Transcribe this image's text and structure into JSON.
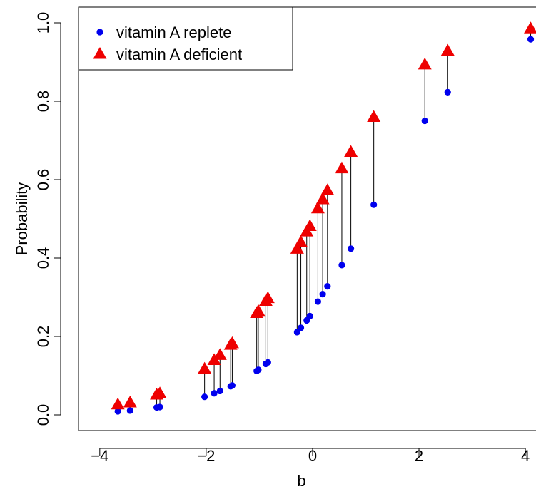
{
  "chart_data": {
    "type": "scatter",
    "xlabel": "b",
    "ylabel": "Probability",
    "xlim": [
      -4.4,
      4.2
    ],
    "ylim": [
      -0.04,
      1.04
    ],
    "xticks": [
      -4,
      -2,
      0,
      2,
      4
    ],
    "xtick_labels": [
      "−4",
      "−2",
      "0",
      "2",
      "4"
    ],
    "yticks": [
      0.0,
      0.2,
      0.4,
      0.6,
      0.8,
      1.0
    ],
    "ytick_labels": [
      "0.0",
      "0.2",
      "0.4",
      "0.6",
      "0.8",
      "1.0"
    ],
    "grid": false,
    "legend_position": "top-left",
    "series": [
      {
        "name": "vitamin A replete",
        "marker": "circle",
        "color": "#0000ee",
        "key": "replete"
      },
      {
        "name": "vitamin A deficient",
        "marker": "triangle",
        "color": "#ee0000",
        "key": "deficient"
      }
    ],
    "points": [
      {
        "b": -3.66,
        "replete": 0.009,
        "deficient": 0.026
      },
      {
        "b": -3.43,
        "replete": 0.011,
        "deficient": 0.031
      },
      {
        "b": -2.93,
        "replete": 0.019,
        "deficient": 0.051
      },
      {
        "b": -2.87,
        "replete": 0.02,
        "deficient": 0.054
      },
      {
        "b": -2.03,
        "replete": 0.046,
        "deficient": 0.117
      },
      {
        "b": -1.85,
        "replete": 0.055,
        "deficient": 0.139
      },
      {
        "b": -1.74,
        "replete": 0.061,
        "deficient": 0.152
      },
      {
        "b": -1.54,
        "replete": 0.073,
        "deficient": 0.178
      },
      {
        "b": -1.51,
        "replete": 0.075,
        "deficient": 0.182
      },
      {
        "b": -1.05,
        "replete": 0.112,
        "deficient": 0.259
      },
      {
        "b": -1.02,
        "replete": 0.115,
        "deficient": 0.264
      },
      {
        "b": -0.88,
        "replete": 0.13,
        "deficient": 0.29
      },
      {
        "b": -0.84,
        "replete": 0.134,
        "deficient": 0.297
      },
      {
        "b": -0.29,
        "replete": 0.211,
        "deficient": 0.423
      },
      {
        "b": -0.22,
        "replete": 0.222,
        "deficient": 0.44
      },
      {
        "b": -0.11,
        "replete": 0.241,
        "deficient": 0.467
      },
      {
        "b": -0.05,
        "replete": 0.252,
        "deficient": 0.481
      },
      {
        "b": 0.1,
        "replete": 0.289,
        "deficient": 0.526
      },
      {
        "b": 0.19,
        "replete": 0.308,
        "deficient": 0.549
      },
      {
        "b": 0.28,
        "replete": 0.328,
        "deficient": 0.572
      },
      {
        "b": 0.55,
        "replete": 0.382,
        "deficient": 0.628
      },
      {
        "b": 0.72,
        "replete": 0.424,
        "deficient": 0.67
      },
      {
        "b": 1.15,
        "replete": 0.536,
        "deficient": 0.759
      },
      {
        "b": 2.11,
        "replete": 0.75,
        "deficient": 0.893
      },
      {
        "b": 2.54,
        "replete": 0.823,
        "deficient": 0.928
      },
      {
        "b": 4.1,
        "replete": 0.958,
        "deficient": 0.985
      }
    ]
  }
}
